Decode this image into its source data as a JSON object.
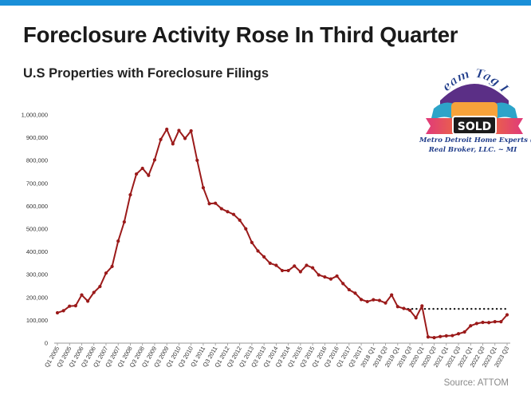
{
  "header": {
    "title": "Foreclosure Activity Rose In Third Quarter",
    "subtitle": "U.S Properties with Foreclosure Filings"
  },
  "footer": {
    "source": "Source: ATTOM"
  },
  "logo": {
    "arc_text": "Team Tag It",
    "badge_text": "SOLD",
    "caption_line1": "Metro Detroit Home Experts @",
    "caption_line2": "Real Broker, LLC. ~ MI"
  },
  "colors": {
    "line": "#9b1a1a",
    "dotted_reference": "#1a1a1a",
    "top_bar": "#1a8fd8",
    "axis": "#999999"
  },
  "chart_data": {
    "type": "line",
    "title": "",
    "xlabel": "",
    "ylabel": "",
    "ylim": [
      0,
      1000000
    ],
    "yticks": [
      0,
      100000,
      200000,
      300000,
      400000,
      500000,
      600000,
      700000,
      800000,
      900000,
      1000000
    ],
    "ytick_labels": [
      "0",
      "100,000",
      "200,000",
      "300,000",
      "400,000",
      "500,000",
      "600,000",
      "700,000",
      "800,000",
      "900,000",
      "1,000,000"
    ],
    "grid": false,
    "x": [
      "Q1 2005",
      "Q2 2005",
      "Q3 2005",
      "Q4 2005",
      "Q1 2006",
      "Q2 2006",
      "Q3 2006",
      "Q4 2006",
      "Q1 2007",
      "Q2 2007",
      "Q3 2007",
      "Q4 2007",
      "Q1 2008",
      "Q2 2008",
      "Q3 2008",
      "Q4 2008",
      "Q1 2009",
      "Q2 2009",
      "Q3 2009",
      "Q4 2009",
      "Q1 2010",
      "Q2 2010",
      "Q3 2010",
      "Q4 2010",
      "Q1 2011",
      "Q2 2011",
      "Q3 2011",
      "Q4 2011",
      "Q1 2012",
      "Q2 2012",
      "Q3 2012",
      "Q4 2012",
      "Q1 2013",
      "Q2 2013",
      "Q3 2013",
      "Q4 2013",
      "Q1 2014",
      "Q2 2014",
      "Q3 2014",
      "Q4 2014",
      "Q1 2015",
      "Q2 2015",
      "Q3 2015",
      "Q4 2015",
      "Q1 2016",
      "Q2 2016",
      "Q3 2016",
      "Q4 2016",
      "Q1 2017",
      "Q2 2017",
      "Q3 2017",
      "Q4 2017",
      "Q1 2018",
      "Q2 2018",
      "Q3 2018",
      "Q4 2018",
      "Q1 2019",
      "Q2 2019",
      "Q3 2019",
      "Q4 2019",
      "Q1 2020",
      "Q2 2020",
      "Q3 2020",
      "Q4 2020",
      "Q1 2021",
      "Q2 2021",
      "Q3 2021",
      "Q4 2021",
      "Q1 2022",
      "Q2 2022",
      "Q3 2022",
      "Q4 2022",
      "Q1 2023",
      "Q2 2023",
      "Q3 2023"
    ],
    "x_tick_labels": [
      "Q1 2005",
      "Q3 2005",
      "Q1 2006",
      "Q3 2006",
      "Q1 2007",
      "Q3 2007",
      "Q1 2008",
      "Q3 2008",
      "Q1 2009",
      "Q3 2009",
      "Q1 2010",
      "Q3 2010",
      "Q1 2011",
      "Q3 2011",
      "Q1 2012",
      "Q3 2012",
      "Q1 2013",
      "Q3 2013",
      "Q1 2014",
      "Q3 2014",
      "Q1 2015",
      "Q3 2015",
      "Q1 2016",
      "Q3 2016",
      "Q1 2017",
      "Q3 2017",
      "2018 Q1",
      "2018 Q3",
      "2019 Q1",
      "2019 Q3",
      "2020 Q1",
      "2020 Q3",
      "2021 Q1",
      "2021 Q3",
      "2022 Q1",
      "2022 Q3",
      "2023 Q1",
      "2023 Q3"
    ],
    "series": [
      {
        "values": [
          133000,
          142000,
          162000,
          164000,
          211000,
          184000,
          222000,
          248000,
          307000,
          336000,
          447000,
          531000,
          650000,
          741000,
          766000,
          735000,
          803000,
          892000,
          937000,
          873000,
          932000,
          897000,
          930000,
          801000,
          681000,
          611000,
          613000,
          589000,
          576000,
          564000,
          539000,
          501000,
          441000,
          404000,
          378000,
          350000,
          341000,
          318000,
          318000,
          338000,
          313000,
          341000,
          330000,
          299000,
          290000,
          281000,
          294000,
          261000,
          234000,
          219000,
          191000,
          182000,
          190000,
          187000,
          176000,
          211000,
          160000,
          152000,
          144000,
          111000,
          163000,
          27000,
          24000,
          29000,
          32000,
          33000,
          41000,
          49000,
          76000,
          86000,
          91000,
          90000,
          94000,
          94000,
          124000
        ]
      }
    ],
    "reference_line": {
      "value": 150000,
      "from": "Q2 2019",
      "to": "Q3 2023",
      "style": "dotted"
    },
    "legend": "none"
  }
}
